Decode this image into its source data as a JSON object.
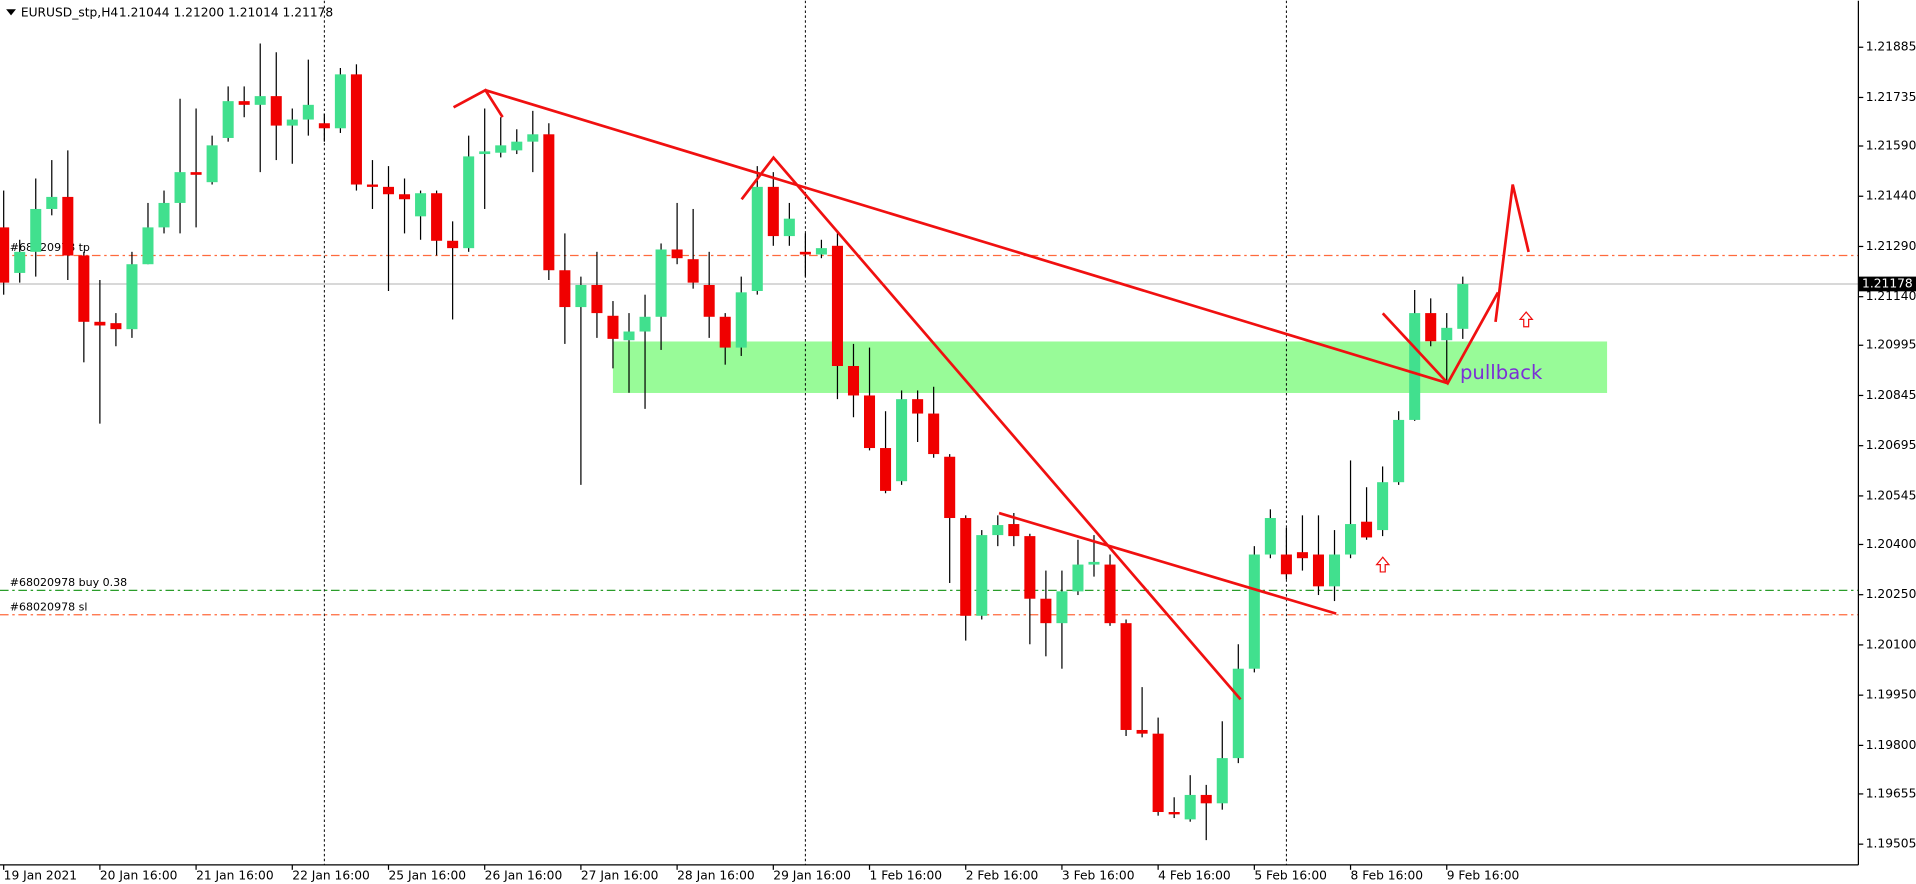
{
  "header": {
    "symbol": "EURUSD_stp,H4",
    "quote": "1.21044 1.21200 1.21014 1.21178"
  },
  "chart_data": {
    "type": "candlestick",
    "categories": [
      "19 Jan 2021",
      null,
      null,
      null,
      null,
      null,
      "20 Jan 16:00",
      null,
      null,
      null,
      null,
      null,
      "21 Jan 16:00",
      null,
      null,
      null,
      null,
      null,
      "22 Jan 16:00",
      null,
      null,
      null,
      null,
      null,
      "25 Jan 16:00",
      null,
      null,
      null,
      null,
      null,
      "26 Jan 16:00",
      null,
      null,
      null,
      null,
      null,
      "27 Jan 16:00",
      null,
      null,
      null,
      null,
      null,
      "28 Jan 16:00",
      null,
      null,
      null,
      null,
      null,
      "29 Jan 16:00",
      null,
      null,
      null,
      null,
      null,
      "1 Feb 16:00",
      null,
      null,
      null,
      null,
      null,
      "2 Feb 16:00",
      null,
      null,
      null,
      null,
      null,
      "3 Feb 16:00",
      null,
      null,
      null,
      null,
      null,
      "4 Feb 16:00",
      null,
      null,
      null,
      null,
      null,
      "5 Feb 16:00",
      null,
      null,
      null,
      null,
      null,
      "8 Feb 16:00",
      null,
      null,
      null,
      null,
      null,
      "9 Feb 16:00",
      null
    ],
    "open": [
      1.21347,
      1.21211,
      1.21274,
      1.21402,
      1.21438,
      1.21263,
      1.21065,
      1.21061,
      1.21043,
      1.21237,
      1.21347,
      1.2142,
      1.21512,
      1.21482,
      1.21614,
      1.21724,
      1.21713,
      1.21739,
      1.21651,
      1.21669,
      1.21658,
      1.21643,
      1.21804,
      1.21475,
      1.21468,
      1.21446,
      1.2138,
      1.21449,
      1.21307,
      1.21285,
      1.21566,
      1.2157,
      1.21577,
      1.21603,
      1.21625,
      1.21219,
      1.21109,
      1.21175,
      1.21083,
      1.2101,
      1.21036,
      1.2108,
      1.21281,
      1.21252,
      1.21175,
      1.2108,
      1.20988,
      1.21157,
      1.21468,
      1.21321,
      1.21274,
      1.21266,
      1.21292,
      1.20933,
      1.20845,
      1.20688,
      1.20589,
      1.20834,
      1.20791,
      1.20662,
      1.20479,
      1.20187,
      1.20428,
      1.20461,
      1.20425,
      1.20238,
      1.20165,
      1.2026,
      1.2034,
      1.2034,
      1.20165,
      1.19846,
      1.19835,
      1.19601,
      1.19579,
      1.19652,
      1.19627,
      1.19762,
      1.20029,
      1.2037,
      1.2037,
      1.20377,
      1.2037,
      1.20275,
      1.2037,
      1.20468,
      1.20443,
      1.20586,
      1.20772,
      1.21091,
      1.2101,
      1.21044
    ],
    "high": [
      1.21457,
      1.2131,
      1.21493,
      1.21548,
      1.21577,
      1.21274,
      1.2119,
      1.21091,
      1.21274,
      1.2142,
      1.21457,
      1.21731,
      1.21702,
      1.21621,
      1.21768,
      1.21768,
      1.21896,
      1.2187,
      1.21702,
      1.21848,
      1.21687,
      1.21823,
      1.21834,
      1.21548,
      1.2153,
      1.21493,
      1.21457,
      1.21457,
      1.21365,
      1.21621,
      1.21702,
      1.21676,
      1.2164,
      1.21695,
      1.21658,
      1.21329,
      1.212,
      1.21274,
      1.21127,
      1.21091,
      1.21146,
      1.21299,
      1.2142,
      1.21402,
      1.21274,
      1.21091,
      1.212,
      1.2153,
      1.21512,
      1.2142,
      1.21329,
      1.2131,
      1.21329,
      1.20999,
      1.20988,
      1.20798,
      1.2086,
      1.2086,
      1.20871,
      1.2067,
      1.20487,
      1.20443,
      1.20487,
      1.20494,
      1.20432,
      1.20322,
      1.20322,
      1.20414,
      1.20428,
      1.2037,
      1.20176,
      1.19974,
      1.19883,
      1.19645,
      1.19711,
      1.19682,
      1.19872,
      1.20102,
      1.20395,
      1.20505,
      1.2045,
      1.20487,
      1.20487,
      1.20443,
      1.20651,
      1.20571,
      1.20633,
      1.20798,
      1.2116,
      1.21135,
      1.21091,
      1.212
    ],
    "low": [
      1.21146,
      1.21182,
      1.212,
      1.21383,
      1.2119,
      1.20944,
      1.20761,
      1.20992,
      1.21017,
      1.21237,
      1.21329,
      1.21329,
      1.21347,
      1.21475,
      1.21603,
      1.21676,
      1.21512,
      1.21548,
      1.21537,
      1.21621,
      1.21603,
      1.21629,
      1.21457,
      1.21402,
      1.21157,
      1.21329,
      1.2131,
      1.21263,
      1.21072,
      1.21274,
      1.21402,
      1.21556,
      1.21566,
      1.21512,
      1.2119,
      1.20999,
      1.20578,
      1.21017,
      1.20926,
      1.20853,
      1.20805,
      1.20981,
      1.21237,
      1.21164,
      1.21017,
      1.20937,
      1.20963,
      1.21146,
      1.21292,
      1.21292,
      1.212,
      1.21255,
      1.20834,
      1.2078,
      1.20681,
      1.20553,
      1.20578,
      1.20706,
      1.20659,
      1.20285,
      1.20113,
      1.20176,
      1.20395,
      1.20395,
      1.20102,
      1.20066,
      1.20029,
      1.20249,
      1.20304,
      1.20157,
      1.19828,
      1.19824,
      1.1959,
      1.19583,
      1.19572,
      1.19517,
      1.19608,
      1.19747,
      1.20018,
      1.20359,
      1.20296,
      1.20322,
      1.20249,
      1.20231,
      1.20359,
      1.20414,
      1.20425,
      1.20578,
      1.20769,
      1.20992,
      1.20889,
      1.21014
    ],
    "close": [
      1.21182,
      1.21274,
      1.21402,
      1.21438,
      1.21263,
      1.21065,
      1.21054,
      1.21043,
      1.21237,
      1.21347,
      1.2142,
      1.21512,
      1.21504,
      1.21592,
      1.21724,
      1.21713,
      1.21739,
      1.21651,
      1.21669,
      1.21713,
      1.21643,
      1.21804,
      1.21475,
      1.21468,
      1.21446,
      1.21431,
      1.21449,
      1.21307,
      1.21285,
      1.21559,
      1.21574,
      1.21592,
      1.21603,
      1.21625,
      1.21219,
      1.21109,
      1.21175,
      1.21091,
      1.21014,
      1.21036,
      1.2108,
      1.21281,
      1.21255,
      1.21182,
      1.2108,
      1.20988,
      1.21153,
      1.21468,
      1.21321,
      1.21373,
      1.21266,
      1.21285,
      1.20933,
      1.20845,
      1.20688,
      1.2056,
      1.20834,
      1.20791,
      1.2067,
      1.20479,
      1.20187,
      1.20428,
      1.20458,
      1.20425,
      1.20238,
      1.20165,
      1.2026,
      1.2034,
      1.20348,
      1.20165,
      1.19846,
      1.19835,
      1.19601,
      1.19594,
      1.19652,
      1.19627,
      1.19762,
      1.20029,
      1.2037,
      1.20479,
      1.20311,
      1.20359,
      1.20275,
      1.2037,
      1.20461,
      1.20421,
      1.20586,
      1.20772,
      1.21091,
      1.21007,
      1.21047,
      1.21178
    ],
    "up_color": "#41e08e",
    "down_color": "#f00000",
    "ylim": [
      1.19443,
      1.22024
    ],
    "yticks": [
      1.21885,
      1.21735,
      {
        "value": 1.2159,
        "label": "1.21590"
      },
      {
        "value": 1.2144,
        "label": "1.21440"
      },
      {
        "value": 1.2129,
        "label": "1.21290"
      },
      {
        "value": 1.2114,
        "label": "1.21140"
      },
      1.20995,
      1.20845,
      1.20695,
      1.20545,
      {
        "value": 1.204,
        "label": "1.20400"
      },
      {
        "value": 1.2025,
        "label": "1.20250"
      },
      {
        "value": 1.201,
        "label": "1.20100"
      },
      {
        "value": 1.1995,
        "label": "1.19950"
      },
      {
        "value": 1.198,
        "label": "1.19800"
      },
      1.19655,
      1.19505
    ],
    "last_price": 1.21178,
    "levels": [
      {
        "name": "#68020978 tp",
        "value": 1.21263,
        "color": "#ff6a3d"
      },
      {
        "name": "#68020978 buy 0.38",
        "value": 1.20263,
        "color": "#2a9d2a"
      },
      {
        "name": "#68020978 sl",
        "value": 1.2019,
        "color": "#ff6a3d"
      }
    ],
    "annotation": "pullback"
  }
}
